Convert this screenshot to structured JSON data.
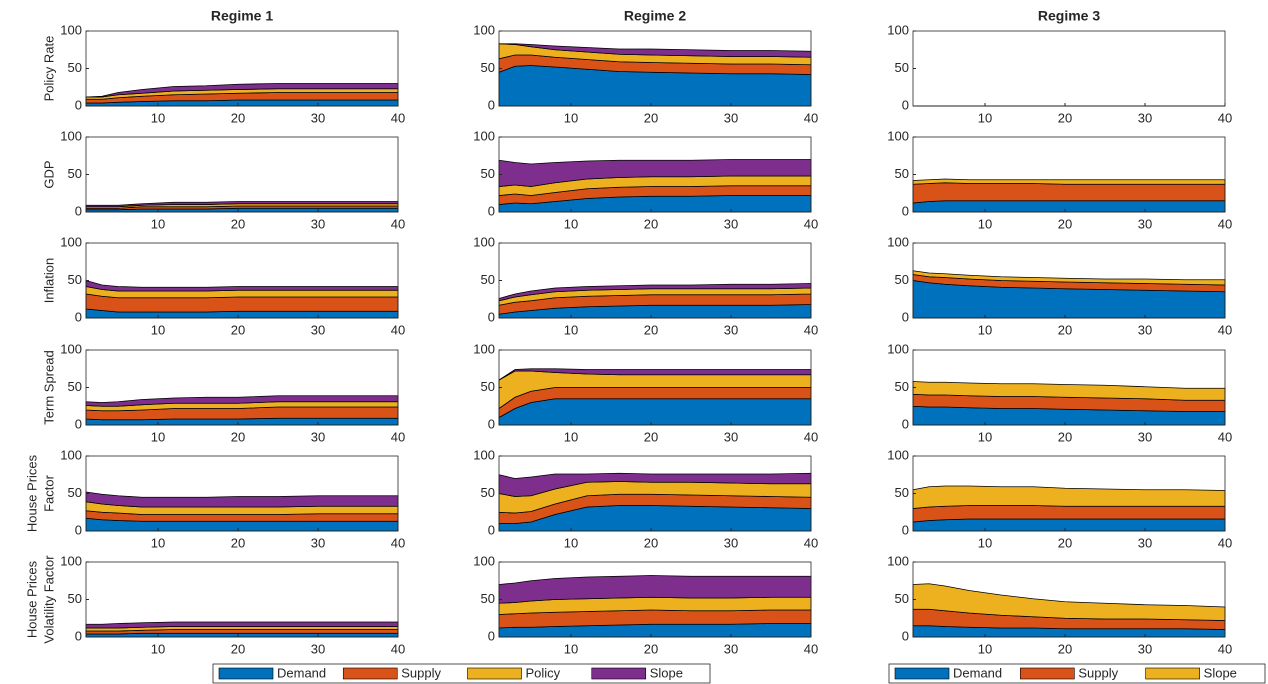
{
  "chart_data": {
    "type": "area",
    "x": [
      1,
      3,
      5,
      8,
      12,
      16,
      20,
      25,
      30,
      35,
      40
    ],
    "xlim": [
      1,
      40
    ],
    "xticks": [
      10,
      20,
      30,
      40
    ],
    "ylim": [
      0,
      100
    ],
    "yticks": [
      0,
      50,
      100
    ],
    "variables": [
      [
        "Policy Rate"
      ],
      [
        "GDP"
      ],
      [
        "Inflation"
      ],
      [
        "Term Spread"
      ],
      [
        "House Prices",
        "Factor"
      ],
      [
        "House Prices",
        "Volatility Factor"
      ]
    ],
    "legends": [
      {
        "series": [
          {
            "name": "Demand",
            "color": "#0072bd"
          },
          {
            "name": "Supply",
            "color": "#d95319"
          },
          {
            "name": "Policy",
            "color": "#edb120"
          },
          {
            "name": "Slope",
            "color": "#7e2f8e"
          }
        ]
      },
      {
        "series": [
          {
            "name": "Demand",
            "color": "#0072bd"
          },
          {
            "name": "Supply",
            "color": "#d95319"
          },
          {
            "name": "Slope",
            "color": "#edb120"
          }
        ]
      }
    ],
    "regimes": [
      {
        "title": "Regime 1",
        "panels": [
          [
            [
              4,
              4,
              5,
              6,
              7,
              7,
              8,
              8,
              8,
              8,
              8
            ],
            [
              5,
              5,
              6,
              7,
              8,
              9,
              9,
              10,
              10,
              10,
              10
            ],
            [
              3,
              3,
              4,
              4,
              5,
              5,
              5,
              5,
              5,
              5,
              5
            ],
            [
              0,
              1,
              3,
              5,
              6,
              6,
              7,
              7,
              7,
              7,
              7
            ]
          ],
          [
            [
              3,
              3,
              3,
              4,
              4,
              4,
              5,
              5,
              5,
              5,
              5
            ],
            [
              2,
              2,
              2,
              3,
              3,
              3,
              3,
              3,
              3,
              3,
              3
            ],
            [
              2,
              2,
              2,
              2,
              3,
              3,
              3,
              3,
              3,
              3,
              3
            ],
            [
              2,
              2,
              2,
              2,
              3,
              3,
              3,
              3,
              3,
              3,
              3
            ]
          ],
          [
            [
              12,
              10,
              8,
              8,
              8,
              8,
              9,
              9,
              9,
              9,
              9
            ],
            [
              20,
              19,
              19,
              19,
              19,
              19,
              19,
              19,
              19,
              19,
              19
            ],
            [
              10,
              9,
              9,
              9,
              9,
              9,
              9,
              9,
              9,
              9,
              9
            ],
            [
              8,
              6,
              6,
              5,
              5,
              5,
              5,
              5,
              5,
              5,
              5
            ]
          ],
          [
            [
              8,
              7,
              7,
              7,
              8,
              8,
              8,
              9,
              9,
              9,
              9
            ],
            [
              12,
              12,
              12,
              13,
              14,
              14,
              14,
              15,
              15,
              15,
              15
            ],
            [
              6,
              6,
              6,
              7,
              7,
              7,
              7,
              7,
              7,
              7,
              7
            ],
            [
              5,
              5,
              6,
              7,
              7,
              8,
              8,
              8,
              8,
              8,
              8
            ]
          ],
          [
            [
              17,
              15,
              14,
              13,
              13,
              13,
              13,
              13,
              13,
              13,
              13
            ],
            [
              10,
              10,
              10,
              9,
              9,
              9,
              9,
              9,
              10,
              10,
              10
            ],
            [
              12,
              11,
              10,
              10,
              10,
              10,
              10,
              10,
              10,
              10,
              10
            ],
            [
              13,
              13,
              13,
              13,
              13,
              13,
              14,
              14,
              14,
              14,
              14
            ]
          ],
          [
            [
              4,
              4,
              4,
              5,
              5,
              5,
              5,
              5,
              5,
              5,
              5
            ],
            [
              4,
              4,
              4,
              4,
              5,
              5,
              5,
              5,
              5,
              5,
              5
            ],
            [
              4,
              4,
              4,
              4,
              4,
              4,
              4,
              4,
              4,
              4,
              4
            ],
            [
              5,
              5,
              6,
              6,
              6,
              6,
              6,
              6,
              6,
              6,
              6
            ]
          ]
        ]
      },
      {
        "title": "Regime 2",
        "panels": [
          [
            [
              45,
              53,
              54,
              52,
              49,
              46,
              45,
              44,
              43,
              43,
              42
            ],
            [
              18,
              15,
              14,
              13,
              13,
              13,
              13,
              13,
              13,
              13,
              13
            ],
            [
              20,
              14,
              11,
              10,
              10,
              10,
              10,
              10,
              10,
              10,
              10
            ],
            [
              0,
              1,
              3,
              5,
              6,
              7,
              8,
              8,
              8,
              8,
              8
            ]
          ],
          [
            [
              10,
              12,
              11,
              14,
              18,
              20,
              21,
              21,
              22,
              22,
              22
            ],
            [
              12,
              12,
              11,
              12,
              13,
              13,
              13,
              13,
              13,
              13,
              13
            ],
            [
              12,
              12,
              12,
              13,
              13,
              13,
              13,
              13,
              13,
              13,
              13
            ],
            [
              35,
              30,
              30,
              27,
              24,
              23,
              22,
              22,
              22,
              22,
              22
            ]
          ],
          [
            [
              5,
              8,
              10,
              13,
              15,
              16,
              17,
              17,
              17,
              17,
              18
            ],
            [
              12,
              13,
              13,
              14,
              14,
              14,
              14,
              14,
              14,
              14,
              14
            ],
            [
              6,
              7,
              8,
              8,
              8,
              8,
              8,
              8,
              8,
              8,
              8
            ],
            [
              3,
              4,
              5,
              5,
              5,
              5,
              5,
              5,
              6,
              6,
              6
            ]
          ],
          [
            [
              10,
              22,
              30,
              35,
              35,
              35,
              35,
              35,
              35,
              35,
              35
            ],
            [
              12,
              15,
              15,
              15,
              15,
              15,
              15,
              15,
              15,
              15,
              15
            ],
            [
              38,
              35,
              27,
              20,
              18,
              17,
              17,
              17,
              17,
              17,
              17
            ],
            [
              0,
              2,
              3,
              5,
              6,
              7,
              7,
              7,
              7,
              7,
              7
            ]
          ],
          [
            [
              10,
              10,
              12,
              22,
              32,
              34,
              34,
              33,
              32,
              31,
              30
            ],
            [
              15,
              14,
              14,
              14,
              15,
              15,
              15,
              15,
              15,
              15,
              15
            ],
            [
              25,
              22,
              21,
              20,
              18,
              17,
              16,
              17,
              17,
              17,
              18
            ],
            [
              25,
              24,
              25,
              20,
              11,
              11,
              11,
              11,
              12,
              13,
              14
            ]
          ],
          [
            [
              12,
              13,
              13,
              14,
              15,
              16,
              17,
              17,
              17,
              18,
              18
            ],
            [
              18,
              18,
              19,
              19,
              19,
              19,
              19,
              18,
              18,
              18,
              18
            ],
            [
              15,
              15,
              16,
              17,
              17,
              17,
              17,
              17,
              17,
              17,
              17
            ],
            [
              25,
              26,
              27,
              28,
              29,
              29,
              29,
              29,
              29,
              28,
              28
            ]
          ]
        ]
      },
      {
        "title": "Regime 3",
        "panels": [
          [
            [
              0,
              0,
              0,
              0,
              0,
              0,
              0,
              0,
              0,
              0,
              0
            ],
            [
              0,
              0,
              0,
              0,
              0,
              0,
              0,
              0,
              0,
              0,
              0
            ],
            [
              0,
              0,
              0,
              0,
              0,
              0,
              0,
              0,
              0,
              0,
              0
            ]
          ],
          [
            [
              12,
              14,
              15,
              15,
              15,
              15,
              15,
              15,
              15,
              15,
              15
            ],
            [
              25,
              24,
              24,
              23,
              23,
              23,
              22,
              22,
              22,
              22,
              22
            ],
            [
              5,
              5,
              5,
              5,
              5,
              5,
              6,
              6,
              6,
              6,
              6
            ]
          ],
          [
            [
              50,
              47,
              45,
              43,
              41,
              40,
              39,
              38,
              37,
              36,
              35
            ],
            [
              8,
              8,
              9,
              9,
              9,
              9,
              9,
              9,
              9,
              9,
              9
            ],
            [
              5,
              5,
              5,
              5,
              5,
              5,
              5,
              5,
              6,
              6,
              7
            ]
          ],
          [
            [
              25,
              24,
              24,
              23,
              22,
              22,
              21,
              20,
              19,
              18,
              18
            ],
            [
              16,
              16,
              16,
              16,
              16,
              16,
              16,
              16,
              16,
              15,
              15
            ],
            [
              17,
              17,
              17,
              17,
              17,
              17,
              17,
              17,
              16,
              16,
              16
            ]
          ],
          [
            [
              12,
              14,
              15,
              16,
              16,
              16,
              16,
              16,
              16,
              16,
              16
            ],
            [
              18,
              18,
              18,
              18,
              18,
              18,
              17,
              17,
              17,
              17,
              17
            ],
            [
              25,
              27,
              27,
              26,
              25,
              25,
              24,
              23,
              22,
              22,
              21
            ]
          ],
          [
            [
              15,
              15,
              14,
              13,
              12,
              12,
              11,
              11,
              11,
              11,
              10
            ],
            [
              22,
              22,
              21,
              19,
              17,
              15,
              14,
              13,
              13,
              12,
              12
            ],
            [
              33,
              34,
              33,
              30,
              27,
              24,
              22,
              21,
              19,
              19,
              18
            ]
          ]
        ]
      }
    ]
  }
}
